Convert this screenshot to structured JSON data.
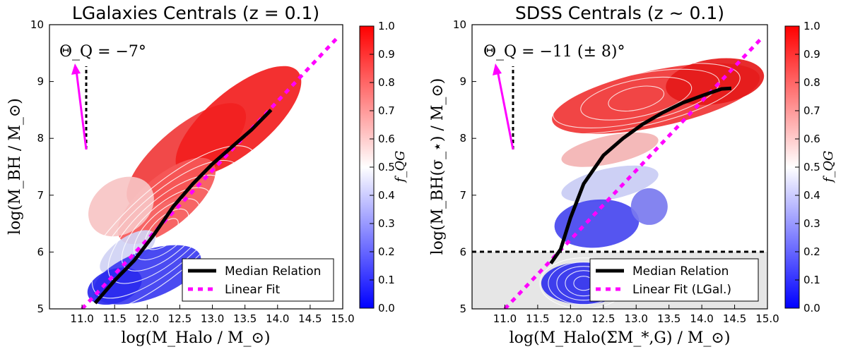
{
  "chart_data": [
    {
      "type": "scatter",
      "subtype": "hexbin-with-contours",
      "title": "LGalaxies Centrals (z = 0.1)",
      "xlabel": "log(M_Halo / M_⊙)",
      "ylabel": "log(M_BH / M_⊙)",
      "xlim": [
        10.5,
        15.0
      ],
      "ylim": [
        5,
        10
      ],
      "xticks": [
        "11.0",
        "11.5",
        "12.0",
        "12.5",
        "13.0",
        "13.5",
        "14.0",
        "14.5",
        "15.0"
      ],
      "yticks": [
        "5",
        "6",
        "7",
        "8",
        "9",
        "10"
      ],
      "annotation": "Θ_Q = −7°",
      "colorbar": {
        "label": "f_QG",
        "range": [
          0.0,
          1.0
        ],
        "ticks": [
          "0.0",
          "0.1",
          "0.2",
          "0.3",
          "0.4",
          "0.5",
          "0.6",
          "0.7",
          "0.8",
          "0.9",
          "1.0"
        ]
      },
      "legend": {
        "position": "lower-right",
        "entries": [
          "Median Relation",
          "Linear Fit"
        ]
      },
      "series": [
        {
          "name": "Median Relation",
          "x": [
            11.2,
            11.5,
            11.8,
            12.1,
            12.4,
            12.7,
            13.0,
            13.3,
            13.6,
            13.9
          ],
          "y": [
            5.1,
            5.5,
            5.85,
            6.3,
            6.8,
            7.2,
            7.55,
            7.85,
            8.15,
            8.5
          ]
        },
        {
          "name": "Linear Fit",
          "x": [
            11.0,
            14.9
          ],
          "y": [
            5.0,
            9.75
          ]
        }
      ]
    },
    {
      "type": "scatter",
      "subtype": "hexbin-with-contours",
      "title": "SDSS Centrals (z ~ 0.1)",
      "xlabel": "log(M_Halo(ΣM_*,G) / M_⊙)",
      "ylabel": "log(M_BH(σ_⋆) / M_⊙)",
      "xlim": [
        10.5,
        15.0
      ],
      "ylim": [
        5,
        10
      ],
      "xticks": [
        "11.0",
        "11.5",
        "12.0",
        "12.5",
        "13.0",
        "13.5",
        "14.0",
        "14.5",
        "15.0"
      ],
      "yticks": [
        "5",
        "6",
        "7",
        "8",
        "9",
        "10"
      ],
      "annotation": "Θ_Q = −11 (± 8)°",
      "threshold_line_y": 6.0,
      "colorbar": {
        "label": "f_QG",
        "range": [
          0.0,
          1.0
        ],
        "ticks": [
          "0.0",
          "0.1",
          "0.2",
          "0.3",
          "0.4",
          "0.5",
          "0.6",
          "0.7",
          "0.8",
          "0.9",
          "1.0"
        ]
      },
      "legend": {
        "position": "lower-right",
        "entries": [
          "Median Relation",
          "Linear Fit (LGal.)"
        ]
      },
      "series": [
        {
          "name": "Median Relation",
          "x": [
            11.7,
            11.85,
            12.0,
            12.2,
            12.5,
            12.8,
            13.1,
            13.4,
            13.7,
            14.0,
            14.3,
            14.45
          ],
          "y": [
            5.8,
            6.05,
            6.6,
            7.2,
            7.7,
            8.0,
            8.25,
            8.45,
            8.62,
            8.75,
            8.87,
            8.88
          ]
        },
        {
          "name": "Linear Fit (LGal.)",
          "x": [
            11.0,
            14.9
          ],
          "y": [
            5.0,
            9.75
          ]
        }
      ]
    }
  ]
}
